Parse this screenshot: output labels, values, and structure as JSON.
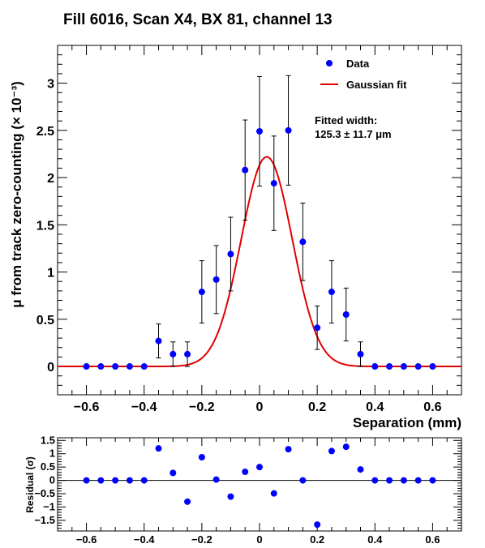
{
  "chart_data": [
    {
      "type": "scatter",
      "title": "Fill 6016, Scan X4, BX 81, channel 13",
      "xlabel": "Separation (mm)",
      "ylabel": "μ from track zero-counting (× 10⁻³)",
      "xlim": [
        -0.7,
        0.7
      ],
      "ylim": [
        -0.3,
        3.4
      ],
      "xticks": [
        "−0.6",
        "−0.4",
        "−0.2",
        "0",
        "0.2",
        "0.4",
        "0.6"
      ],
      "yticks": [
        "0",
        "0.5",
        "1",
        "1.5",
        "2",
        "2.5",
        "3"
      ],
      "legend": {
        "placement": "top-right",
        "entries": [
          "Data",
          "Gaussian fit"
        ]
      },
      "annotation": [
        "Fitted width:",
        "125.3 ± 11.7 μm"
      ],
      "colors": {
        "data": "#0000ff",
        "fit": "#e00000",
        "errorbar": "#000000"
      },
      "series": [
        {
          "name": "Data",
          "x": [
            -0.6,
            -0.55,
            -0.5,
            -0.45,
            -0.4,
            -0.35,
            -0.3,
            -0.25,
            -0.2,
            -0.15,
            -0.1,
            -0.05,
            0.0,
            0.05,
            0.1,
            0.15,
            0.2,
            0.25,
            0.3,
            0.35,
            0.4,
            0.45,
            0.5,
            0.55,
            0.6
          ],
          "y": [
            0.0,
            0.0,
            0.0,
            0.0,
            0.0,
            0.27,
            0.13,
            0.13,
            0.79,
            0.92,
            1.19,
            2.08,
            2.49,
            1.94,
            2.5,
            1.32,
            0.41,
            0.79,
            0.55,
            0.13,
            0.0,
            0.0,
            0.0,
            0.0,
            0.0
          ],
          "yerr": [
            0.0,
            0.0,
            0.0,
            0.0,
            0.0,
            0.18,
            0.13,
            0.13,
            0.33,
            0.36,
            0.39,
            0.53,
            0.58,
            0.5,
            0.58,
            0.41,
            0.23,
            0.33,
            0.28,
            0.13,
            0.0,
            0.0,
            0.0,
            0.0,
            0.0
          ]
        },
        {
          "name": "Gaussian fit",
          "model": "gaussian",
          "amplitude": 2.22,
          "mean": 0.025,
          "sigma": 0.0886
        }
      ]
    },
    {
      "type": "scatter",
      "ylabel": "Residual (σ)",
      "xlim": [
        -0.7,
        0.7
      ],
      "ylim": [
        -1.9,
        1.6
      ],
      "xticks": [
        "−0.6",
        "−0.4",
        "−0.2",
        "0",
        "0.2",
        "0.4",
        "0.6"
      ],
      "yticks": [
        "−1.5",
        "−1",
        "−0.5",
        "0",
        "0.5",
        "1",
        "1.5"
      ],
      "series": [
        {
          "x": [
            -0.6,
            -0.55,
            -0.5,
            -0.45,
            -0.4,
            -0.35,
            -0.3,
            -0.25,
            -0.2,
            -0.15,
            -0.1,
            -0.05,
            0.0,
            0.05,
            0.1,
            0.15,
            0.2,
            0.25,
            0.3,
            0.35,
            0.4,
            0.45,
            0.5,
            0.55,
            0.6
          ],
          "y": [
            0.0,
            0.0,
            0.0,
            0.0,
            0.0,
            1.2,
            0.28,
            -0.8,
            0.87,
            0.03,
            -0.61,
            0.32,
            0.5,
            -0.49,
            1.17,
            0.0,
            -1.66,
            1.1,
            1.26,
            0.41,
            0.0,
            0.0,
            0.0,
            0.0,
            0.0
          ]
        }
      ]
    }
  ]
}
